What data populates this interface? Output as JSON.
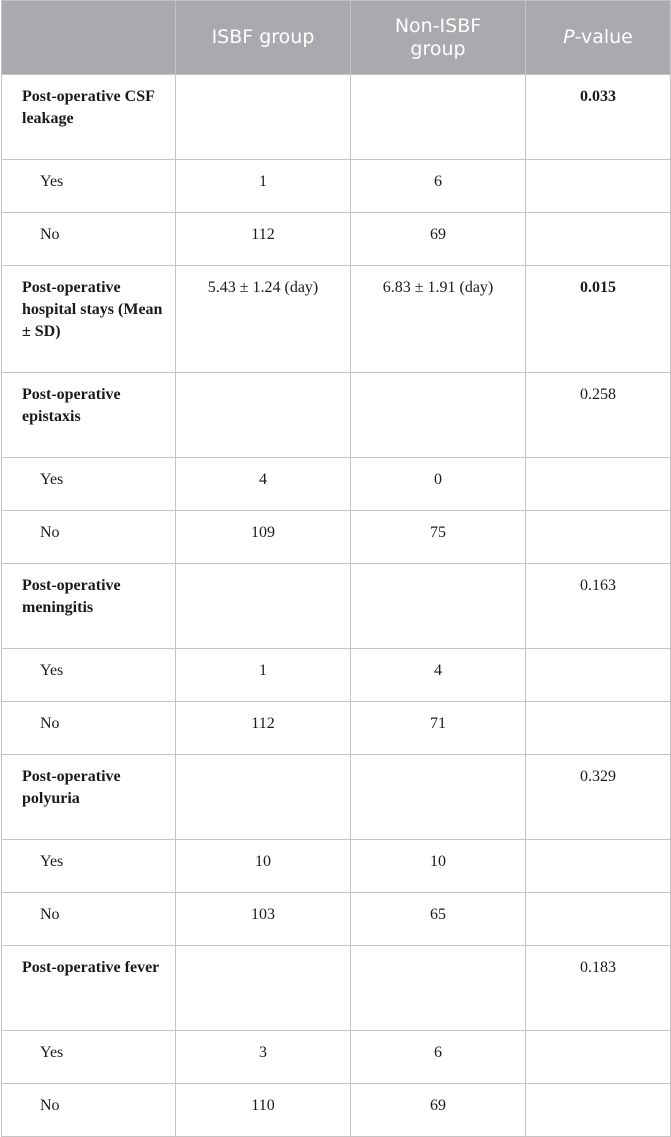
{
  "header": {
    "col_isbf": "ISBF group",
    "col_non_isbf_line1": "Non-ISBF",
    "col_non_isbf_line2": "group",
    "col_p_italic": "P",
    "col_p_rest": "-value"
  },
  "rows": [
    {
      "label": "Post-operative CSF leakage",
      "isbf": "",
      "non_isbf": "",
      "p": "0.033",
      "p_bold": true
    },
    {
      "label": "Yes",
      "isbf": "1",
      "non_isbf": "6",
      "p": ""
    },
    {
      "label": "No",
      "isbf": "112",
      "non_isbf": "69",
      "p": ""
    },
    {
      "label": "Post-operative hospital stays (Mean ± SD)",
      "isbf": "5.43 ± 1.24 (day)",
      "non_isbf": "6.83 ± 1.91 (day)",
      "p": "0.015",
      "p_bold": true
    },
    {
      "label": "Post-operative epistaxis",
      "isbf": "",
      "non_isbf": "",
      "p": "0.258"
    },
    {
      "label": "Yes",
      "isbf": "4",
      "non_isbf": "0",
      "p": ""
    },
    {
      "label": "No",
      "isbf": "109",
      "non_isbf": "75",
      "p": ""
    },
    {
      "label": "Post-operative meningitis",
      "isbf": "",
      "non_isbf": "",
      "p": "0.163"
    },
    {
      "label": "Yes",
      "isbf": "1",
      "non_isbf": "4",
      "p": ""
    },
    {
      "label": "No",
      "isbf": "112",
      "non_isbf": "71",
      "p": ""
    },
    {
      "label": "Post-operative polyuria",
      "isbf": "",
      "non_isbf": "",
      "p": "0.329"
    },
    {
      "label": "Yes",
      "isbf": "10",
      "non_isbf": "10",
      "p": ""
    },
    {
      "label": "No",
      "isbf": "103",
      "non_isbf": "65",
      "p": ""
    },
    {
      "label": "Post-operative fever",
      "isbf": "",
      "non_isbf": "",
      "p": "0.183"
    },
    {
      "label": "Yes",
      "isbf": "3",
      "non_isbf": "6",
      "p": ""
    },
    {
      "label": "No",
      "isbf": "110",
      "non_isbf": "69",
      "p": ""
    }
  ]
}
